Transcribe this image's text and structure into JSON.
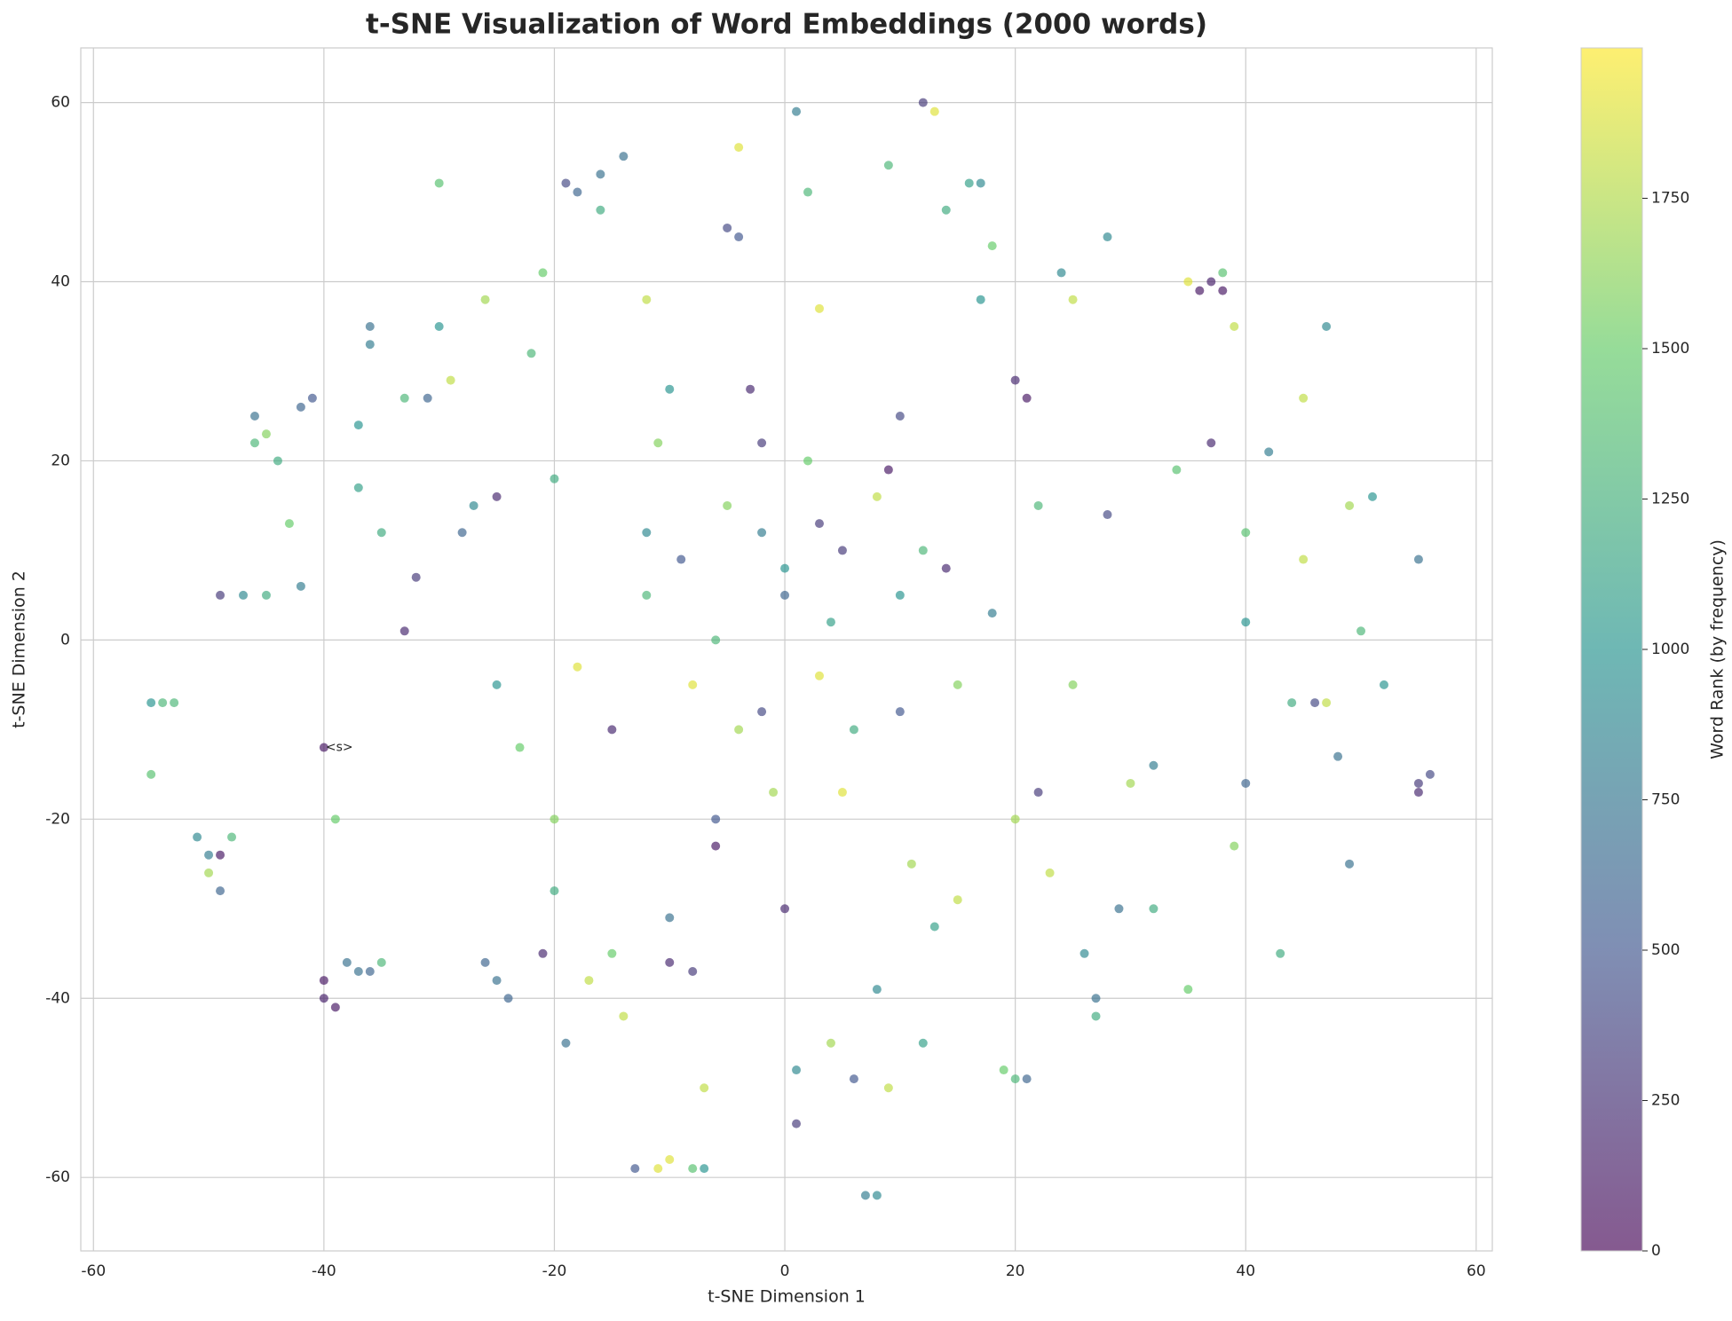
{
  "chart_data": {
    "type": "scatter",
    "title": "t-SNE Visualization of Word Embeddings (2000 words)",
    "xlabel": "t-SNE Dimension 1",
    "ylabel": "t-SNE Dimension 2",
    "colorbar_label": "Word Rank (by frequency)",
    "colormap": "viridis",
    "grid": true,
    "xlim": [
      -61.1,
      61.4
    ],
    "ylim": [
      -68.2,
      66.1
    ],
    "xticks": [
      -60,
      -40,
      -20,
      0,
      20,
      40,
      60
    ],
    "yticks": [
      -60,
      -40,
      -20,
      0,
      20,
      40,
      60
    ],
    "clim": [
      0,
      2000
    ],
    "cticks": [
      0,
      250,
      500,
      750,
      1000,
      1250,
      1500,
      1750
    ],
    "x": [
      -55,
      -54,
      -53,
      -55,
      -50,
      -51,
      -49,
      -48,
      -50,
      -49,
      -49,
      -47,
      -45,
      -46,
      -45,
      -46,
      -44,
      -43,
      -42,
      -41,
      -42,
      -40,
      -40,
      -40,
      -39,
      -39,
      -38,
      -37,
      -36,
      -35,
      -36,
      -36,
      -37,
      -37,
      -35,
      -33,
      -33,
      -31,
      -32,
      -30,
      -30,
      -29,
      -28,
      -27,
      -25,
      -26,
      -24,
      -26,
      -25,
      -23,
      -22,
      -21,
      -21,
      -20,
      -19,
      -19,
      -18,
      -16,
      -16,
      -17,
      -15,
      -14,
      -13,
      -11,
      -10,
      -8,
      -7,
      -14,
      -12,
      -11,
      -12,
      -10,
      -10,
      -8,
      -7,
      -6,
      -6,
      -5,
      -4,
      -4,
      -3,
      -2,
      -2,
      -1,
      0,
      0,
      1,
      1,
      1,
      2,
      3,
      3,
      4,
      5,
      6,
      7,
      8,
      8,
      9,
      9,
      9,
      10,
      11,
      12,
      12,
      13,
      13,
      14,
      14,
      15,
      16,
      17,
      17,
      18,
      19,
      20,
      20,
      21,
      21,
      22,
      23,
      24,
      25,
      26,
      27,
      27,
      28,
      28,
      29,
      30,
      32,
      32,
      34,
      35,
      35,
      36,
      37,
      38,
      38,
      37,
      39,
      40,
      40,
      39,
      40,
      42,
      43,
      44,
      45,
      45,
      46,
      47,
      47,
      48,
      49,
      49,
      50,
      51,
      52,
      55,
      55,
      56,
      55,
      -8,
      -6,
      -4,
      0,
      3,
      5,
      6,
      8,
      10,
      -12,
      -15,
      -18,
      12,
      15,
      18,
      -5,
      2,
      -20,
      22,
      -25,
      25,
      -2,
      4,
      -9,
      20,
      -20,
      10,
      -10
    ],
    "y": [
      -7,
      -7,
      -7,
      -15,
      -24,
      -22,
      -24,
      -22,
      -26,
      -28,
      5,
      5,
      5,
      22,
      23,
      25,
      20,
      13,
      6,
      27,
      26,
      -12,
      -38,
      -40,
      -41,
      -20,
      -36,
      -37,
      -37,
      -36,
      35,
      33,
      24,
      17,
      12,
      1,
      27,
      27,
      7,
      35,
      51,
      29,
      12,
      15,
      -38,
      -36,
      -40,
      38,
      16,
      -12,
      32,
      41,
      -35,
      -28,
      -45,
      51,
      50,
      52,
      48,
      -38,
      -35,
      -42,
      -59,
      -59,
      -58,
      -59,
      -59,
      54,
      38,
      22,
      12,
      -31,
      -36,
      -37,
      -50,
      -23,
      -20,
      46,
      55,
      45,
      28,
      22,
      12,
      -17,
      -30,
      8,
      -48,
      -54,
      59,
      50,
      37,
      13,
      -45,
      -17,
      -49,
      -62,
      -62,
      -39,
      53,
      -50,
      19,
      5,
      -25,
      -45,
      60,
      59,
      -32,
      48,
      8,
      -29,
      51,
      51,
      38,
      44,
      -48,
      -49,
      29,
      27,
      -49,
      -17,
      -26,
      41,
      38,
      -35,
      -40,
      -42,
      45,
      14,
      -30,
      -16,
      -14,
      -30,
      19,
      -39,
      40,
      39,
      40,
      39,
      41,
      22,
      -23,
      2,
      -16,
      35,
      12,
      21,
      -35,
      -7,
      27,
      9,
      -7,
      -7,
      35,
      -13,
      -25,
      15,
      1,
      16,
      -5,
      9,
      -16,
      -15,
      -17,
      -5,
      0,
      -10,
      5,
      -4,
      10,
      -10,
      16,
      -8,
      5,
      -10,
      -3,
      10,
      -5,
      3,
      15,
      20,
      18,
      15,
      -5,
      -5,
      -8,
      2,
      9,
      -20,
      -20,
      25,
      28
    ],
    "c": [
      1000,
      1300,
      1300,
      1400,
      800,
      900,
      100,
      1300,
      1700,
      600,
      300,
      900,
      1200,
      1300,
      1600,
      700,
      1200,
      1500,
      800,
      500,
      600,
      100,
      100,
      150,
      100,
      1500,
      700,
      700,
      600,
      1300,
      700,
      800,
      1000,
      1100,
      1200,
      200,
      1300,
      600,
      300,
      1000,
      1400,
      1800,
      600,
      900,
      700,
      600,
      600,
      1700,
      200,
      1500,
      1300,
      1500,
      200,
      1200,
      700,
      400,
      600,
      700,
      1200,
      1800,
      1500,
      1800,
      500,
      1900,
      1900,
      1400,
      1000,
      700,
      1800,
      1600,
      900,
      700,
      200,
      300,
      1800,
      100,
      500,
      400,
      1900,
      500,
      200,
      300,
      800,
      1700,
      200,
      1000,
      900,
      300,
      800,
      1300,
      1900,
      300,
      1700,
      1900,
      500,
      800,
      900,
      900,
      1300,
      1800,
      100,
      1000,
      1700,
      1100,
      300,
      1900,
      1100,
      1200,
      200,
      1800,
      1100,
      900,
      1000,
      1500,
      1500,
      1300,
      200,
      100,
      600,
      300,
      1800,
      900,
      1800,
      900,
      700,
      1200,
      900,
      400,
      700,
      1700,
      800,
      1200,
      1400,
      1500,
      1900,
      100,
      150,
      100,
      1400,
      200,
      1600,
      1000,
      600,
      1800,
      1400,
      800,
      1200,
      1200,
      1800,
      1800,
      400,
      1800,
      900,
      700,
      700,
      1700,
      1300,
      1000,
      1000,
      700,
      300,
      400,
      200,
      1900,
      1300,
      1700,
      600,
      1900,
      300,
      1200,
      1800,
      500,
      1300,
      200,
      1900,
      1300,
      1600,
      800,
      1600,
      1500,
      1200,
      1300,
      1000,
      1600,
      400,
      1100,
      500,
      1700,
      1600,
      400,
      1000
    ],
    "annotations": [
      {
        "text": "<s>",
        "x": -40,
        "y": -12
      }
    ]
  }
}
